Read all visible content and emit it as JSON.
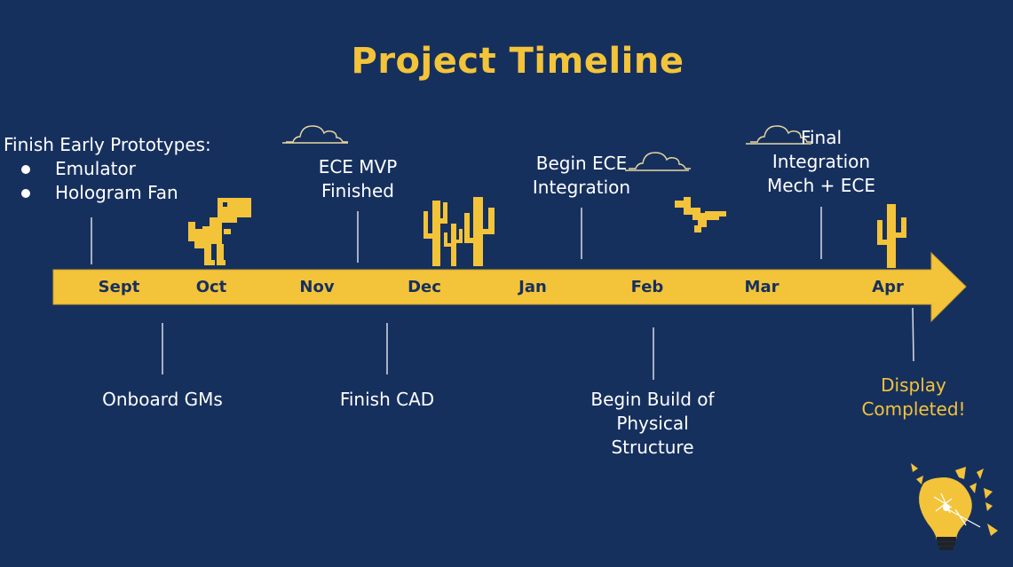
{
  "title": "Project Timeline",
  "colors": {
    "background": "#16305e",
    "accent": "#f3c33a",
    "text": "#ffffff",
    "connector": "#d7dbe4"
  },
  "months": [
    "Sept",
    "Oct",
    "Nov",
    "Dec",
    "Jan",
    "Feb",
    "Mar",
    "Apr"
  ],
  "events_above": {
    "sept_heading": "Finish Early Prototypes:",
    "sept_items": [
      "Emulator",
      "Hologram Fan"
    ],
    "nov_line1": "ECE MVP",
    "nov_line2": "Finished",
    "jan_line1": "Begin ECE",
    "jan_line2": "Integration",
    "mar_line1": "Final",
    "mar_line2": "Integration",
    "mar_line3": "Mech + ECE"
  },
  "events_below": {
    "oct": "Onboard GMs",
    "dec": "Finish CAD",
    "feb_line1": "Begin Build of",
    "feb_line2": "Physical",
    "feb_line3": "Structure",
    "apr_line1": "Display",
    "apr_line2": "Completed!"
  },
  "decorations": [
    "dinosaur-icon",
    "cactus-icon",
    "pterodactyl-icon",
    "cloud-icon",
    "lightbulb-logo"
  ]
}
